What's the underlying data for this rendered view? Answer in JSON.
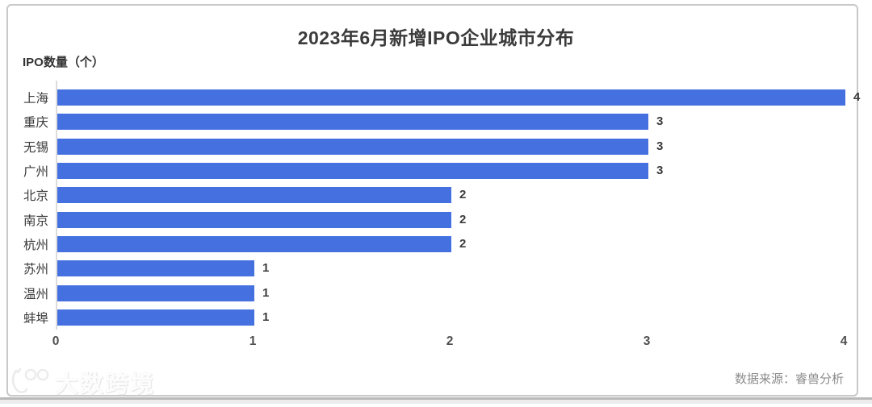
{
  "card": {
    "title": "2023年6月新增IPO企业城市分布",
    "axis_title": "IPO数量（个）",
    "source": "数据来源：睿兽分析"
  },
  "watermark": {
    "text": "大数跨境",
    "logo": "100-smile-logo"
  },
  "theme": {
    "bar_color": "#4470e0",
    "card_border_color": "#c8c8c8",
    "axis_line_color": "#dcdcdc",
    "title_color": "#3b3b3b",
    "label_color": "#3a3a3a",
    "tick_color": "#4f4f4f",
    "source_color": "#8c8c8c"
  },
  "chart_data": {
    "type": "bar",
    "orientation": "horizontal",
    "title": "2023年6月新增IPO企业城市分布",
    "xlabel": "",
    "ylabel": "IPO数量（个）",
    "categories": [
      "上海",
      "重庆",
      "无锡",
      "广州",
      "北京",
      "南京",
      "杭州",
      "苏州",
      "温州",
      "蚌埠"
    ],
    "values": [
      4,
      3,
      3,
      3,
      2,
      2,
      2,
      1,
      1,
      1
    ],
    "xlim": [
      0,
      4
    ],
    "xticks": [
      0,
      1,
      2,
      3,
      4
    ],
    "grid": false,
    "legend": false,
    "value_labels": true,
    "bar_color": "#4470e0"
  }
}
